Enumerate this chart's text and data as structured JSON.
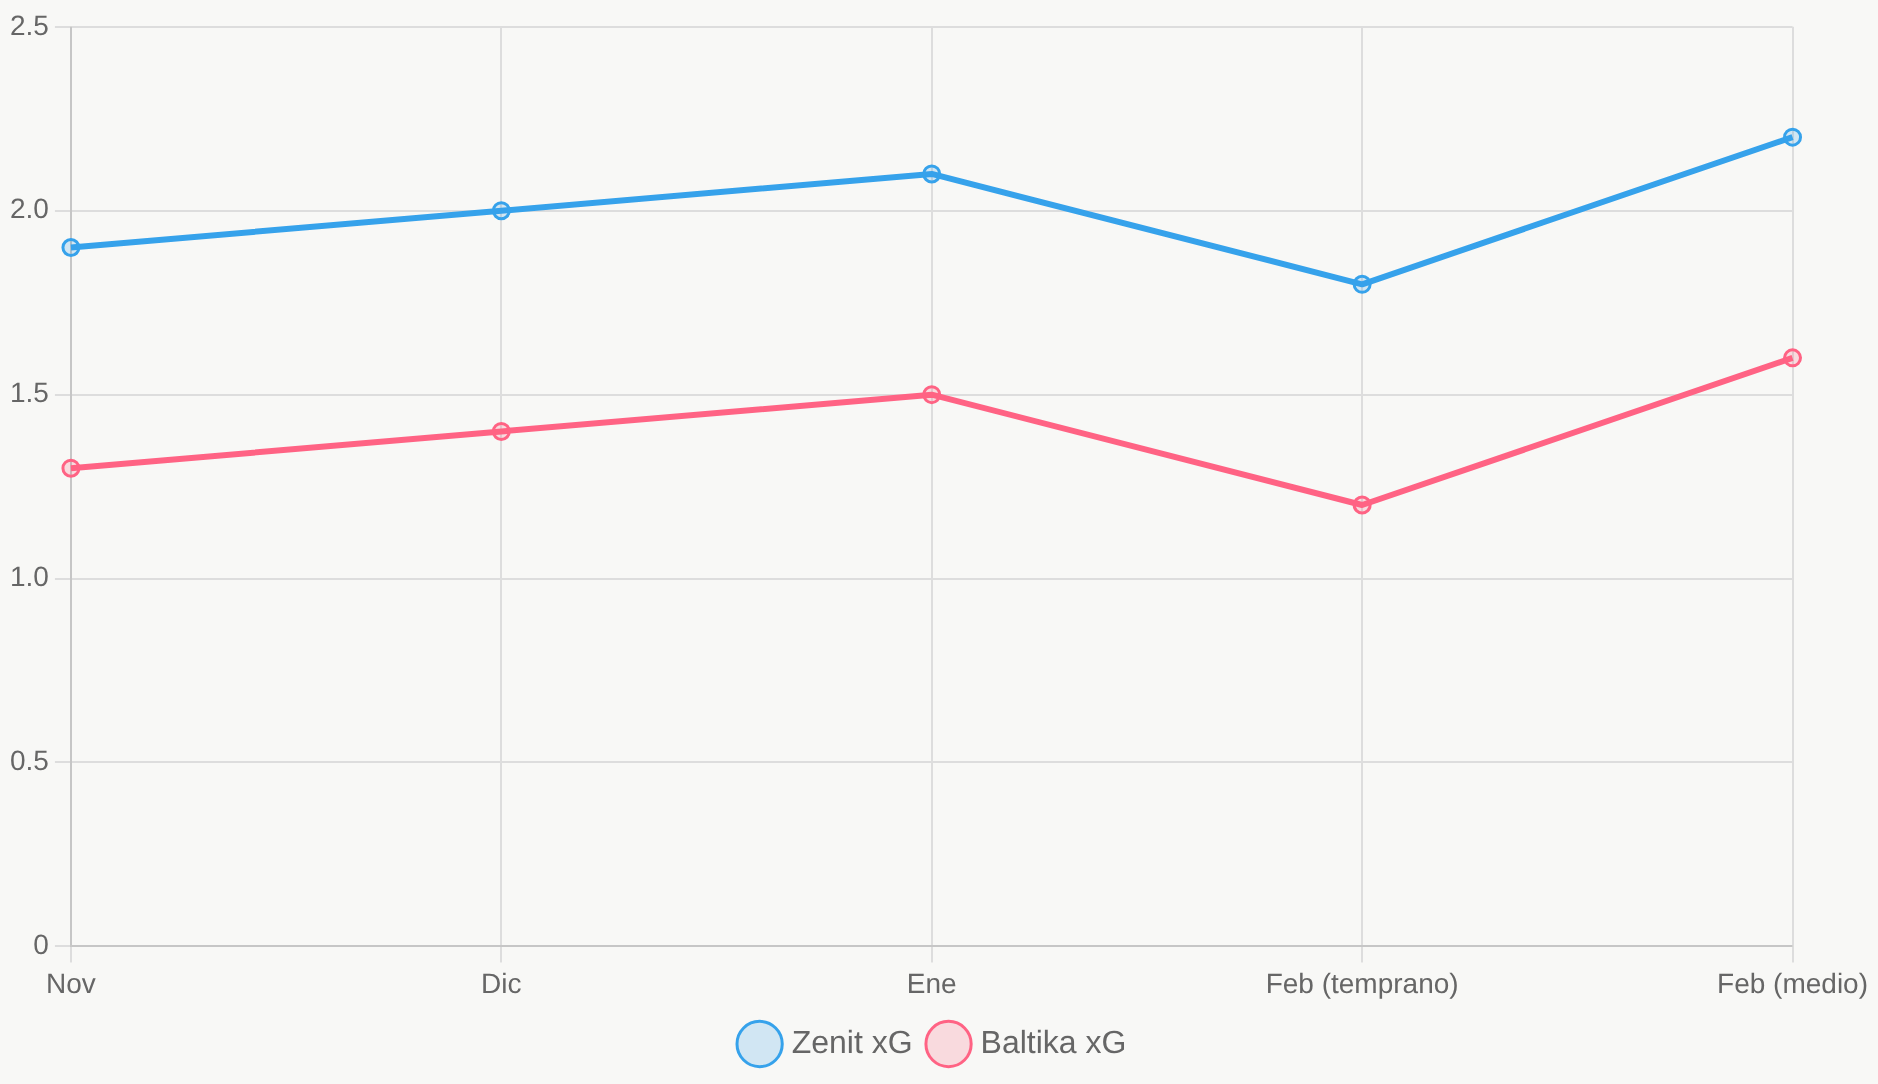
{
  "chart_data": {
    "type": "line",
    "categories": [
      "Nov",
      "Dic",
      "Ene",
      "Feb (temprano)",
      "Feb (medio)"
    ],
    "series": [
      {
        "name": "Zenit xG",
        "color": "#36a2eb",
        "values": [
          1.9,
          2.0,
          2.1,
          1.8,
          2.2
        ]
      },
      {
        "name": "Baltika xG",
        "color": "#ff6384",
        "values": [
          1.3,
          1.4,
          1.5,
          1.2,
          1.6
        ]
      }
    ],
    "ylim": [
      0,
      2.5
    ],
    "yticks": [
      0,
      0.5,
      {
        "value": 1,
        "label": "1.0"
      },
      1.5,
      {
        "value": 2,
        "label": "2.0"
      },
      2.5
    ],
    "grid": true,
    "legend": "bottom",
    "marker": "circle"
  }
}
